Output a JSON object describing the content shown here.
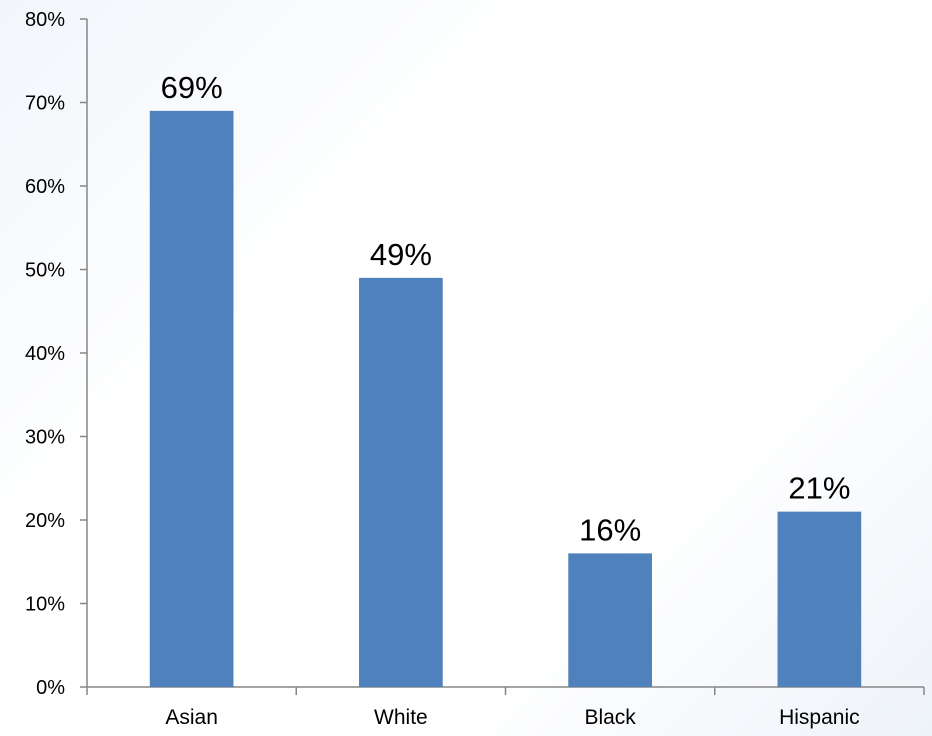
{
  "chart_data": {
    "type": "bar",
    "categories": [
      "Asian",
      "White",
      "Black",
      "Hispanic"
    ],
    "values": [
      69,
      49,
      16,
      21
    ],
    "data_labels": [
      "69%",
      "49%",
      "16%",
      "21%"
    ],
    "title": "",
    "xlabel": "",
    "ylabel": "",
    "ylim": [
      0,
      80
    ],
    "y_ticks": [
      0,
      10,
      20,
      30,
      40,
      50,
      60,
      70,
      80
    ],
    "y_tick_labels": [
      "0%",
      "10%",
      "20%",
      "30%",
      "40%",
      "50%",
      "60%",
      "70%",
      "80%"
    ],
    "grid": false,
    "legend": "none",
    "colors": {
      "bar": "#4F81BD",
      "axis": "#868686",
      "text": "#000000"
    }
  }
}
